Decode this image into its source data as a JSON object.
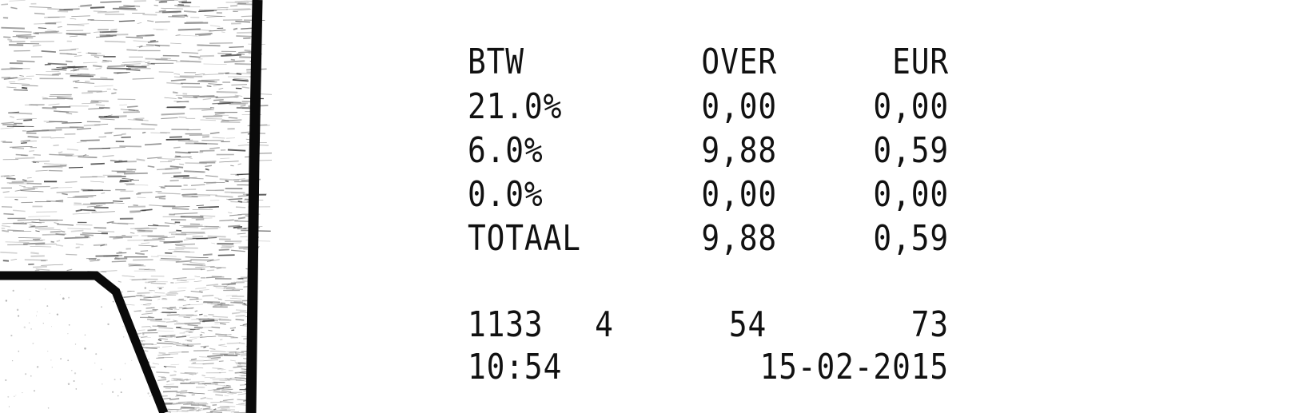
{
  "receipt": {
    "header": {
      "label": "BTW",
      "over": "OVER",
      "eur": "EUR"
    },
    "rows": [
      {
        "label": "21.0%",
        "over": "0,00",
        "eur": "0,00"
      },
      {
        "label": "6.0%",
        "over": "9,88",
        "eur": "0,59"
      },
      {
        "label": "0.0%",
        "over": "0,00",
        "eur": "0,00"
      }
    ],
    "total": {
      "label": "TOTAAL",
      "over": "9,88",
      "eur": "0,59"
    },
    "codes": {
      "a": "1133",
      "b": "4",
      "c": "54",
      "d": "73"
    },
    "footer": {
      "time": "10:54",
      "date": "15-02-2015"
    }
  },
  "colors": {
    "ink": "#111111",
    "paper": "#ffffff",
    "scan_edge": "#0a0a0a",
    "scan_noise": "#8a8a8a"
  }
}
